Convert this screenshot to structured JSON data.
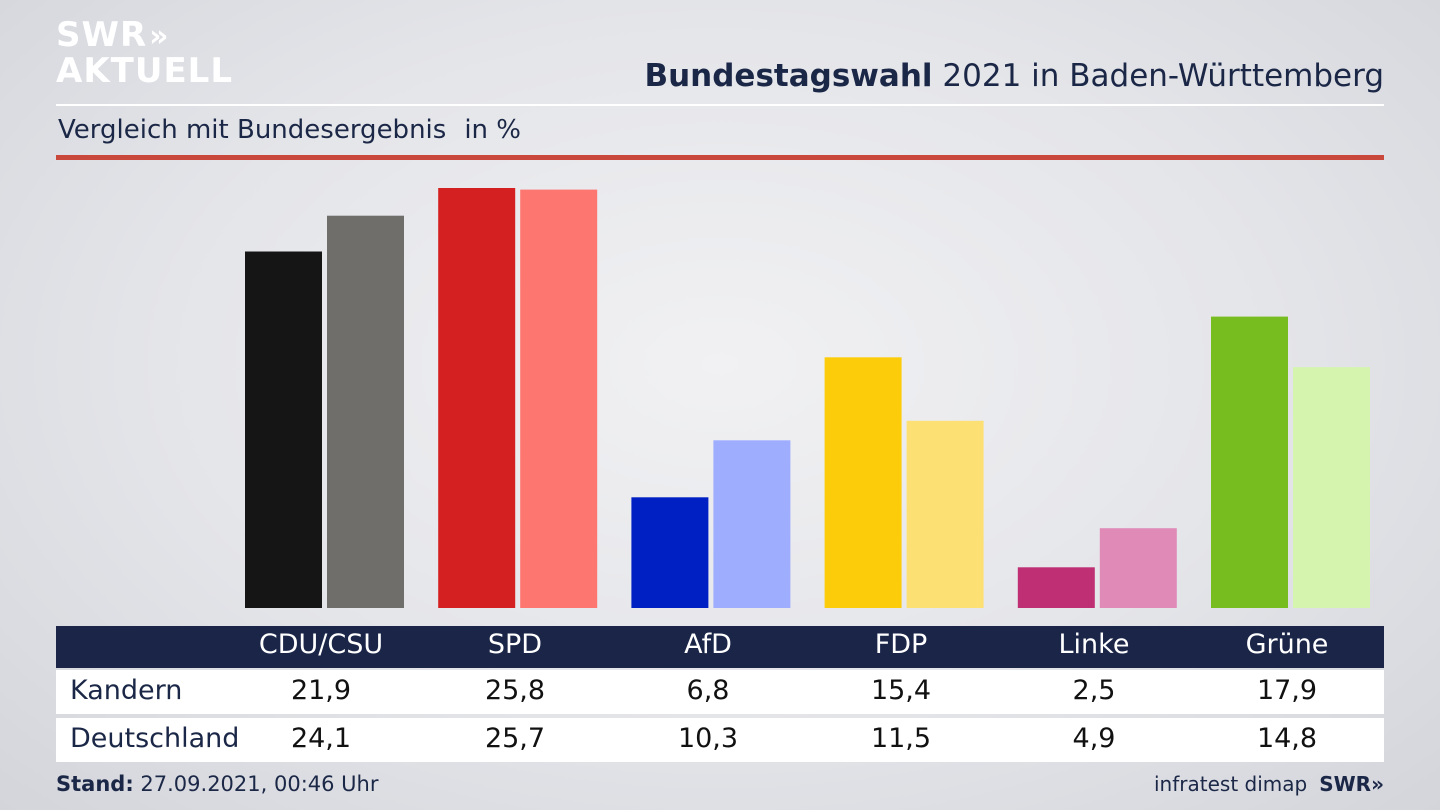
{
  "logo": {
    "line1": "SWR",
    "line2": "AKTUELL",
    "chevrons": "»"
  },
  "header": {
    "title_bold": "Bundestagswahl",
    "title_rest": " 2021 in Baden-Württemberg"
  },
  "subtitle": {
    "text": "Vergleich mit Bundesergebnis",
    "unit": "in %"
  },
  "chart_data": {
    "type": "bar",
    "categories": [
      "CDU/CSU",
      "SPD",
      "AfD",
      "FDP",
      "Linke",
      "Grüne"
    ],
    "series": [
      {
        "name": "Kandern",
        "values": [
          21.9,
          25.8,
          6.8,
          15.4,
          2.5,
          17.9
        ],
        "colors": [
          "#151515",
          "#d42020",
          "#0020c4",
          "#fccc0a",
          "#bf2f73",
          "#78bd1f"
        ]
      },
      {
        "name": "Deutschland",
        "values": [
          24.1,
          25.7,
          10.3,
          11.5,
          4.9,
          14.8
        ],
        "colors": [
          "#6f6e6b",
          "#fd7670",
          "#9fadff",
          "#fde074",
          "#e08ab8",
          "#d5f4ae"
        ]
      }
    ],
    "ylim": [
      0,
      25.8
    ]
  },
  "table": {
    "headers": [
      "CDU/CSU",
      "SPD",
      "AfD",
      "FDP",
      "Linke",
      "Grüne"
    ],
    "rows": [
      {
        "label": "Kandern",
        "values": [
          "21,9",
          "25,8",
          "6,8",
          "15,4",
          "2,5",
          "17,9"
        ]
      },
      {
        "label": "Deutschland",
        "values": [
          "24,1",
          "25,7",
          "10,3",
          "11,5",
          "4,9",
          "14,8"
        ]
      }
    ]
  },
  "footer": {
    "stand_label": "Stand:",
    "stand_value": " 27.09.2021, 00:46 Uhr",
    "source": "infratest dimap",
    "brand": "SWR»"
  },
  "colors": {
    "accent_red": "#c9473b",
    "navy": "#1a2548"
  }
}
